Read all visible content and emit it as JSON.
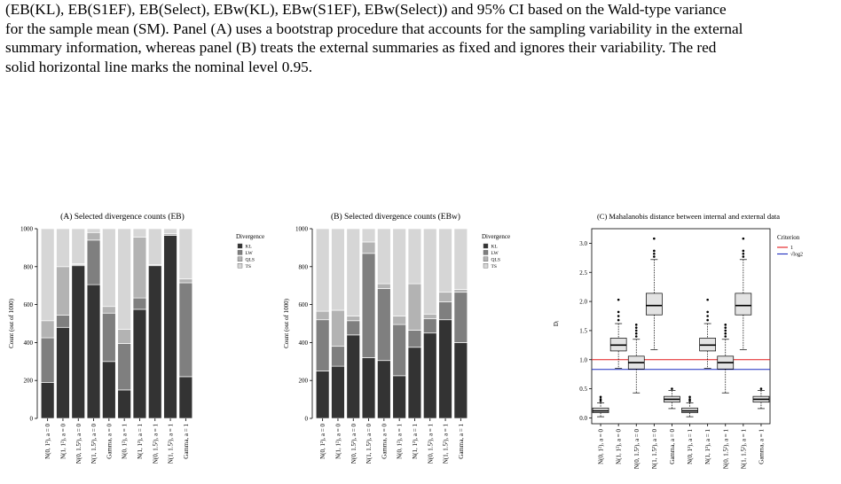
{
  "caption": "(EB(KL), EB(S1EF), EB(Select), EBw(KL), EBw(S1EF), EBw(Select)) and 95% CI based on the Wald-type variance\nfor the sample mean (SM). Panel (A) uses a bootstrap procedure that accounts for the sampling variability in the external\nsummary information, whereas panel (B) treats the external summaries as fixed and ignores their variability. The red\nsolid horizontal line marks the nominal level 0.95.",
  "colors": {
    "KL": "#333333",
    "LW": "#7f7f7f",
    "QLS": "#b3b3b3",
    "TS": "#d6d6d6",
    "red": "#e31a1c",
    "blue": "#1f2fbf"
  },
  "chart_data": [
    {
      "type": "bar",
      "stacked": true,
      "title": "(A) Selected divergence counts (EB)",
      "xlabel": "",
      "ylabel": "Count (out of 1000)",
      "ylim": [
        0,
        1000
      ],
      "yticks": [
        "0",
        "200",
        "400",
        "600",
        "800",
        "1000"
      ],
      "categories": [
        "N(0, 1²), a = 0",
        "N(1, 1²), a = 0",
        "N(0, 1.5²), a = 0",
        "N(1, 1.5²), a = 0",
        "Gamma, a = 0",
        "N(0, 1²), a = 1",
        "N(1, 1²), a = 1",
        "N(0, 1.5²), a = 1",
        "N(1, 1.5²), a = 1",
        "Gamma, a = 1"
      ],
      "legend_title": "Divergence",
      "legend_position": "right",
      "series": [
        {
          "name": "KL",
          "values": [
            190,
            480,
            805,
            705,
            300,
            150,
            575,
            805,
            965,
            220
          ]
        },
        {
          "name": "LW",
          "values": [
            235,
            65,
            5,
            235,
            255,
            245,
            60,
            0,
            0,
            495
          ]
        },
        {
          "name": "QLS",
          "values": [
            90,
            255,
            5,
            40,
            35,
            75,
            320,
            5,
            10,
            20
          ]
        },
        {
          "name": "TS",
          "values": [
            485,
            200,
            185,
            20,
            410,
            530,
            45,
            190,
            25,
            265
          ]
        }
      ]
    },
    {
      "type": "bar",
      "stacked": true,
      "title": "(B) Selected divergence counts (EBw)",
      "xlabel": "",
      "ylabel": "Count (out of 1000)",
      "ylim": [
        0,
        1000
      ],
      "yticks": [
        "0",
        "200",
        "400",
        "600",
        "800",
        "1000"
      ],
      "categories": [
        "N(0, 1²), a = 0",
        "N(1, 1²), a = 0",
        "N(0, 1.5²), a = 0",
        "N(1, 1.5²), a = 0",
        "Gamma, a = 0",
        "N(0, 1²), a = 1",
        "N(1, 1²), a = 1",
        "N(0, 1.5²), a = 1",
        "N(1, 1.5²), a = 1",
        "Gamma, a = 1"
      ],
      "legend_title": "Divergence",
      "legend_position": "right",
      "series": [
        {
          "name": "KL",
          "values": [
            250,
            275,
            440,
            320,
            305,
            225,
            375,
            450,
            520,
            400
          ]
        },
        {
          "name": "LW",
          "values": [
            270,
            105,
            75,
            550,
            380,
            270,
            90,
            75,
            95,
            265
          ]
        },
        {
          "name": "QLS",
          "values": [
            45,
            190,
            25,
            60,
            25,
            45,
            245,
            25,
            50,
            15
          ]
        },
        {
          "name": "TS",
          "values": [
            435,
            430,
            460,
            70,
            290,
            460,
            290,
            450,
            335,
            320
          ]
        }
      ]
    },
    {
      "type": "box",
      "title": "(C) Mahalanobis distance between internal and external data",
      "xlabel": "",
      "ylabel": "Dᵢ",
      "ylim": [
        -0.1,
        3.25
      ],
      "yticks": [
        "0.0",
        "0.5",
        "1.0",
        "1.5",
        "2.0",
        "2.5",
        "3.0"
      ],
      "categories": [
        "N(0, 1²), a = 0",
        "N(1, 1²), a = 0",
        "N(0, 1.5²), a = 0",
        "N(1, 1.5²), a = 0",
        "Gamma, a = 0",
        "N(0, 1²), a = 1",
        "N(1, 1²), a = 1",
        "N(0, 1.5²), a = 1",
        "N(1, 1.5²), a = 1",
        "Gamma, a = 1"
      ],
      "boxes": [
        {
          "min": 0.02,
          "q1": 0.09,
          "median": 0.12,
          "q3": 0.17,
          "max": 0.26,
          "outliers": [
            0.29,
            0.32,
            0.36
          ]
        },
        {
          "min": 0.85,
          "q1": 1.15,
          "median": 1.25,
          "q3": 1.37,
          "max": 1.62,
          "outliers": [
            1.68,
            1.75,
            1.82,
            2.03
          ]
        },
        {
          "min": 0.43,
          "q1": 0.84,
          "median": 0.95,
          "q3": 1.06,
          "max": 1.35,
          "outliers": [
            1.4,
            1.45,
            1.5,
            1.55,
            1.6
          ]
        },
        {
          "min": 1.17,
          "q1": 1.77,
          "median": 1.93,
          "q3": 2.14,
          "max": 2.72,
          "outliers": [
            2.77,
            2.82,
            2.87,
            3.08
          ]
        },
        {
          "min": 0.16,
          "q1": 0.27,
          "median": 0.32,
          "q3": 0.37,
          "max": 0.47,
          "outliers": [
            0.5
          ]
        },
        {
          "min": 0.02,
          "q1": 0.09,
          "median": 0.12,
          "q3": 0.17,
          "max": 0.26,
          "outliers": [
            0.29,
            0.32,
            0.36
          ]
        },
        {
          "min": 0.85,
          "q1": 1.15,
          "median": 1.25,
          "q3": 1.37,
          "max": 1.62,
          "outliers": [
            1.68,
            1.75,
            1.82,
            2.03
          ]
        },
        {
          "min": 0.43,
          "q1": 0.84,
          "median": 0.95,
          "q3": 1.06,
          "max": 1.35,
          "outliers": [
            1.4,
            1.45,
            1.5,
            1.55,
            1.6
          ]
        },
        {
          "min": 1.17,
          "q1": 1.77,
          "median": 1.93,
          "q3": 2.14,
          "max": 2.72,
          "outliers": [
            2.77,
            2.82,
            2.87,
            3.08
          ]
        },
        {
          "min": 0.16,
          "q1": 0.27,
          "median": 0.32,
          "q3": 0.37,
          "max": 0.47,
          "outliers": [
            0.5
          ]
        }
      ],
      "hlines": [
        {
          "name": "1",
          "y": 1.0,
          "color": "#e31a1c"
        },
        {
          "name": "√log2",
          "y": 0.8326,
          "color": "#1f2fbf"
        }
      ],
      "legend_title": "Criterion",
      "legend_position": "right"
    }
  ]
}
